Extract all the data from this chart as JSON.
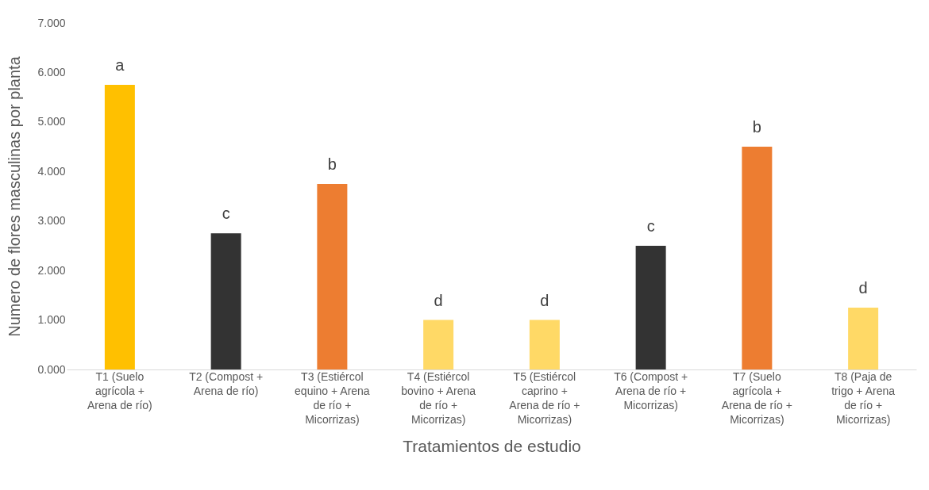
{
  "chart_data": {
    "type": "bar",
    "xlabel": "Tratamientos de estudio",
    "ylabel": "Numero de flores masculinas por planta",
    "categories": [
      "T1 (Suelo agrícola + Arena de río)",
      "T2 (Compost + Arena de río)",
      "T3 (Estiércol equino + Arena de río + Micorrizas)",
      "T4 (Estiércol bovino + Arena de río + Micorrizas)",
      "T5 (Estiércol caprino + Arena de río + Micorrizas)",
      "T6 (Compost + Arena de río + Micorrizas)",
      "T7 (Suelo agrícola + Arena de río + Micorrizas)",
      "T8 (Paja de trigo + Arena de río + Micorrizas)"
    ],
    "values": [
      5.75,
      2.75,
      3.75,
      1.0,
      1.0,
      2.5,
      4.5,
      1.25
    ],
    "colors": [
      "#ffc000",
      "#333333",
      "#ed7d31",
      "#ffd966",
      "#ffd966",
      "#333333",
      "#ed7d31",
      "#ffd966"
    ],
    "ylim": [
      0,
      7
    ],
    "yticks": [
      {
        "value": 0,
        "label": "0.000"
      },
      {
        "value": 1,
        "label": "1.000"
      },
      {
        "value": 2,
        "label": "2.000"
      },
      {
        "value": 3,
        "label": "3.000"
      },
      {
        "value": 4,
        "label": "4.000"
      },
      {
        "value": 5,
        "label": "5.000"
      },
      {
        "value": 6,
        "label": "6.000"
      },
      {
        "value": 7,
        "label": "7.000"
      }
    ],
    "grid": false,
    "legend": false,
    "value_labels": [
      "a",
      "c",
      "b",
      "d",
      "d",
      "c",
      "b",
      "d"
    ]
  }
}
